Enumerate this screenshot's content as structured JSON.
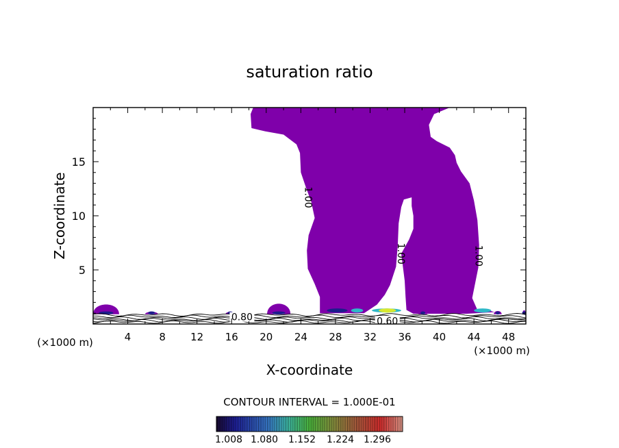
{
  "chart_data": {
    "type": "contour",
    "title": "saturation ratio",
    "xlabel": "X-coordinate",
    "ylabel": "Z-coordinate",
    "x_unit_left": "(×1000 m)",
    "x_unit_right": "(×1000 m)",
    "xlim": [
      0,
      50
    ],
    "ylim": [
      0,
      20
    ],
    "xticks": [
      4,
      8,
      12,
      16,
      20,
      24,
      28,
      32,
      36,
      40,
      44,
      48
    ],
    "yticks": [
      5,
      10,
      15
    ],
    "contour_labels": [
      {
        "text": "1.00",
        "x": 24.5,
        "z": 11.7
      },
      {
        "text": "1.00",
        "x": 35.2,
        "z": 6.5
      },
      {
        "text": "1.00",
        "x": 44.2,
        "z": 6.3
      },
      {
        "text": "0.80",
        "x": 17.2,
        "z": 0.65
      },
      {
        "text": "0.60",
        "x": 34.0,
        "z": 0.3
      }
    ],
    "supersaturated_region": {
      "outline": [
        [
          18.2,
          19.4
        ],
        [
          18.5,
          20
        ],
        [
          41.2,
          20
        ],
        [
          39.4,
          19.4
        ],
        [
          38.8,
          18.4
        ],
        [
          39.0,
          17.3
        ],
        [
          39.7,
          16.9
        ],
        [
          41.2,
          16.3
        ],
        [
          41.8,
          15.6
        ],
        [
          42.0,
          14.9
        ],
        [
          42.5,
          14.1
        ],
        [
          43.5,
          13.0
        ],
        [
          44.0,
          11.4
        ],
        [
          44.4,
          9.6
        ],
        [
          44.6,
          7.3
        ],
        [
          44.5,
          5.2
        ],
        [
          44.1,
          3.6
        ],
        [
          43.8,
          2.4
        ],
        [
          44.4,
          1.3
        ],
        [
          45.5,
          1.3
        ],
        [
          46.4,
          1.1
        ],
        [
          43.2,
          0.95
        ],
        [
          37.0,
          0.95
        ],
        [
          36.2,
          1.3
        ],
        [
          36.1,
          2.5
        ],
        [
          36.0,
          4.0
        ],
        [
          35.6,
          6.5
        ],
        [
          36.5,
          7.8
        ],
        [
          37.0,
          8.8
        ],
        [
          37.0,
          10.0
        ],
        [
          36.8,
          10.9
        ],
        [
          36.8,
          11.7
        ],
        [
          35.9,
          11.5
        ],
        [
          35.6,
          10.8
        ],
        [
          35.3,
          9.3
        ],
        [
          35.2,
          7.3
        ],
        [
          35.0,
          5.3
        ],
        [
          34.3,
          3.6
        ],
        [
          33.7,
          2.7
        ],
        [
          32.8,
          1.8
        ],
        [
          31.3,
          1.0
        ],
        [
          26.2,
          1.0
        ],
        [
          26.2,
          2.5
        ],
        [
          25.6,
          3.7
        ],
        [
          24.8,
          5.1
        ],
        [
          24.7,
          6.8
        ],
        [
          24.9,
          8.2
        ],
        [
          25.6,
          9.8
        ],
        [
          25.2,
          11.3
        ],
        [
          24.6,
          12.6
        ],
        [
          24.0,
          14.0
        ],
        [
          23.9,
          15.8
        ],
        [
          23.5,
          16.6
        ],
        [
          22.0,
          17.5
        ],
        [
          19.9,
          17.8
        ],
        [
          18.3,
          18.1
        ],
        [
          18.2,
          19.4
        ]
      ]
    },
    "blobs": [
      {
        "x": [
          0,
          3.0
        ],
        "z_top": 2.1
      },
      {
        "x": [
          6.0,
          7.5
        ],
        "z_top": 1.2
      },
      {
        "x": [
          15.3,
          16.4
        ],
        "z_top": 1.2
      },
      {
        "x": [
          20.1,
          22.8
        ],
        "z_top": 2.2
      },
      {
        "x": [
          37.6,
          38.6
        ],
        "z_top": 2.8
      },
      {
        "x": [
          46.3,
          47.2
        ],
        "z_top": 1.3
      },
      {
        "x": [
          49.6,
          50
        ],
        "z_top": 1.4
      }
    ],
    "colorbar": {
      "title": "CONTOUR INTERVAL = 1.000E-01",
      "tick_labels": [
        "1.008",
        "1.080",
        "1.152",
        "1.224",
        "1.296"
      ]
    },
    "colors": {
      "fill": "#7f00aa",
      "low": "#1c1c8c",
      "mid": "#2fb8c8",
      "high": "#d8e830"
    }
  }
}
